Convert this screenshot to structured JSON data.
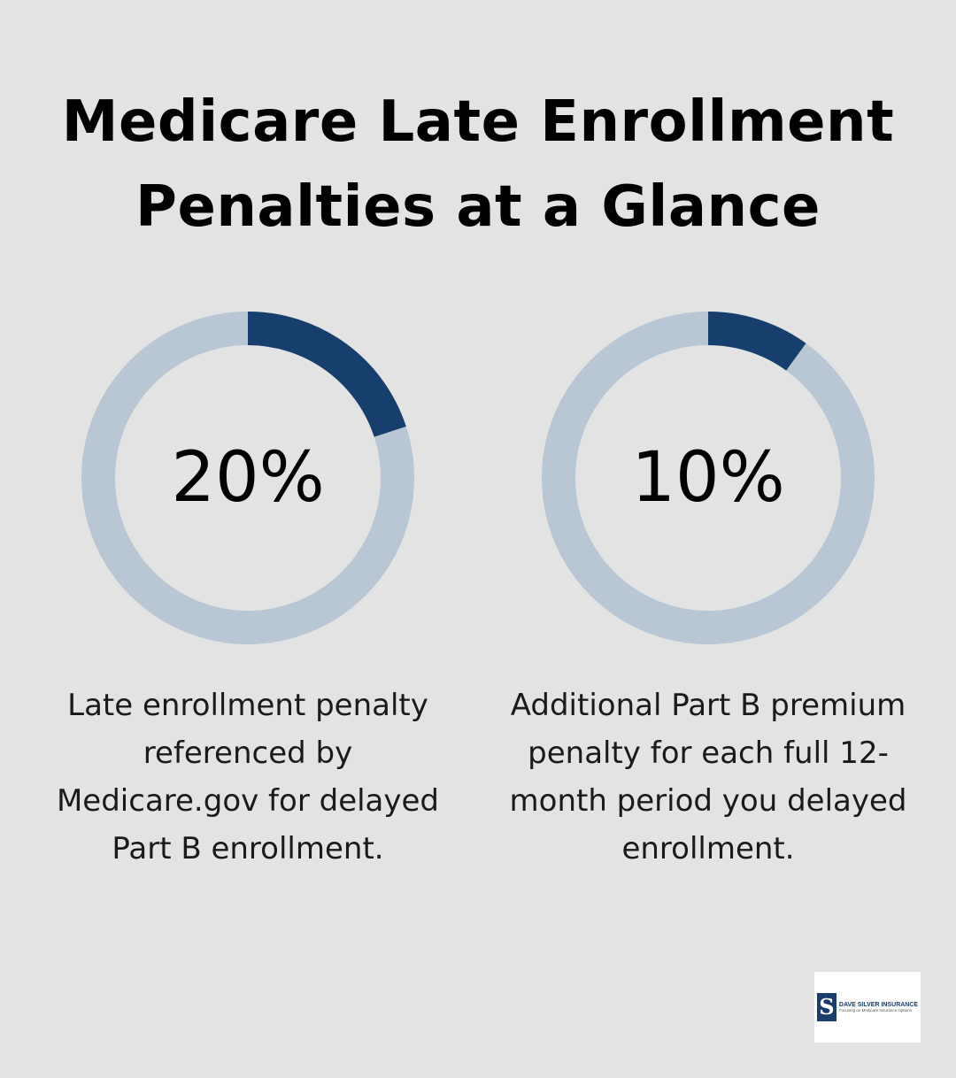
{
  "title": {
    "line1": "Medicare Late Enrollment",
    "line2": "Penalties at a Glance"
  },
  "colors": {
    "background": "#e2e3e2",
    "ring_track": "#b9c6d4",
    "ring_fill": "#173f6d"
  },
  "chart_data": [
    {
      "type": "pie",
      "label": "20%",
      "value": 20,
      "description": "Late enrollment penalty referenced by Medicare.gov for delayed Part B enrollment."
    },
    {
      "type": "pie",
      "label": "10%",
      "value": 10,
      "description": "Additional Part B premium penalty for each full 12-month period you delayed enrollment."
    }
  ],
  "logo": {
    "mark": "S",
    "name": "DAVE SILVER INSURANCE",
    "tagline": "Focusing on Medicare Insurance Options"
  }
}
